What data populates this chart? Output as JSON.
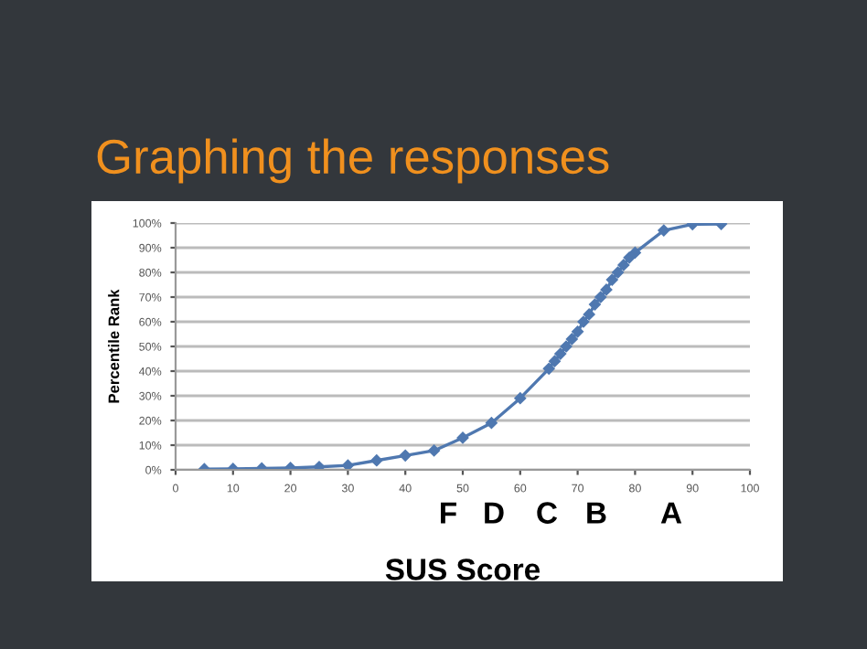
{
  "chart_data": {
    "type": "line",
    "title": "Graphing the responses",
    "xlabel": "SUS Score",
    "ylabel": "Percentile Rank",
    "x": [
      5,
      10,
      15,
      20,
      25,
      30,
      35,
      40,
      45,
      50,
      55,
      60,
      65,
      66,
      67,
      68,
      69,
      70,
      71,
      72,
      73,
      74,
      75,
      76,
      77,
      78,
      79,
      80,
      85,
      90,
      95
    ],
    "series": [
      {
        "color": "#4f78b0",
        "values": [
          0.3,
          0.4,
          0.6,
          0.8,
          1.2,
          1.8,
          3.8,
          5.8,
          7.8,
          13,
          19,
          29,
          41,
          44,
          47,
          50,
          53,
          56,
          60,
          63,
          67,
          70,
          73,
          77,
          80,
          83,
          86,
          88,
          97,
          99.5,
          99.6
        ]
      }
    ],
    "xlim": [
      0,
      100
    ],
    "xticks": [
      0,
      10,
      20,
      30,
      40,
      50,
      60,
      70,
      80,
      90,
      100
    ],
    "ylim": [
      0,
      100
    ],
    "yticks": [
      {
        "value": 0,
        "label": "0%"
      },
      {
        "value": 10,
        "label": "10%"
      },
      {
        "value": 20,
        "label": "20%"
      },
      {
        "value": 30,
        "label": "30%"
      },
      {
        "value": 40,
        "label": "40%"
      },
      {
        "value": 50,
        "label": "50%"
      },
      {
        "value": 60,
        "label": "60%"
      },
      {
        "value": 70,
        "label": "70%"
      },
      {
        "value": 80,
        "label": "80%"
      },
      {
        "value": 90,
        "label": "90%"
      },
      {
        "value": 100,
        "label": "100%"
      }
    ],
    "grid": "y",
    "marker": "diamond",
    "line_style": "solid",
    "annotations": [
      "F",
      "D",
      "C",
      "B",
      "A"
    ]
  }
}
